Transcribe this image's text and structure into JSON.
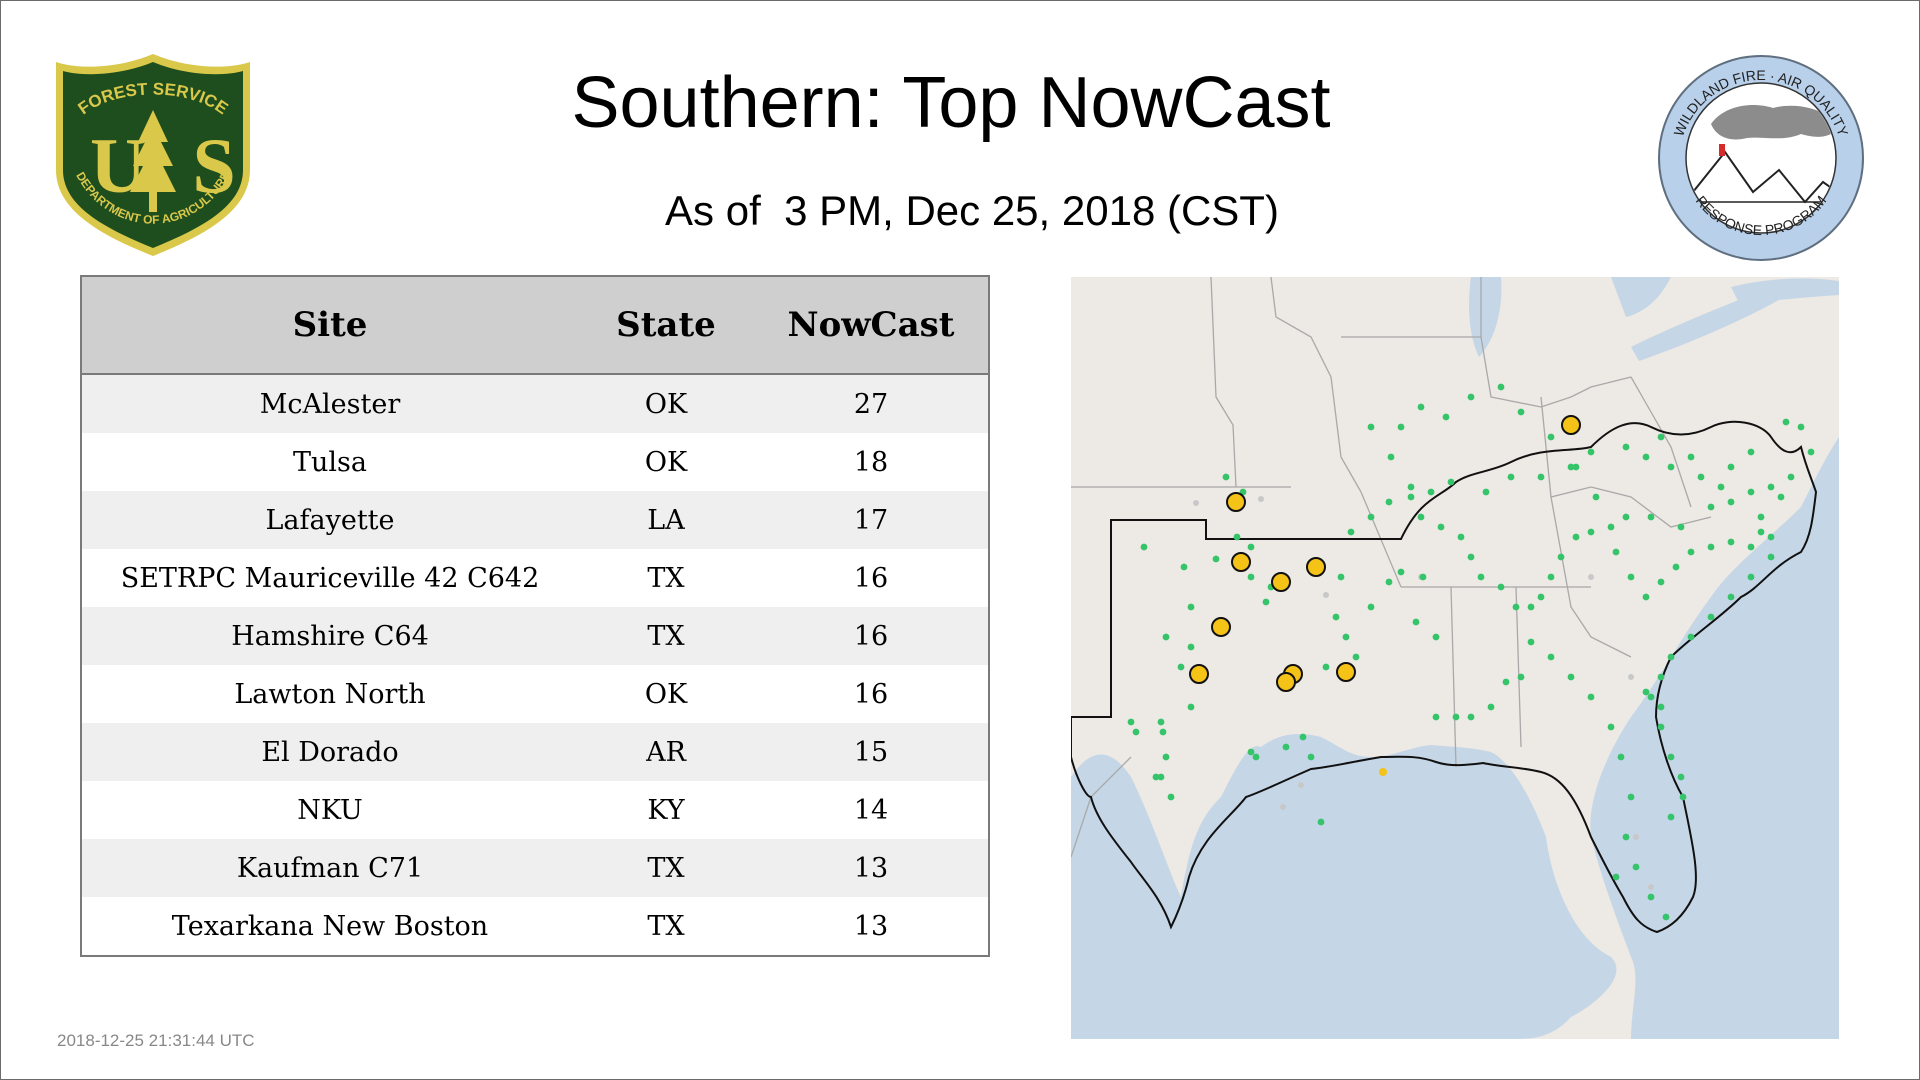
{
  "header": {
    "title": "Southern: Top NowCast",
    "subtitle": "As of  3 PM, Dec 25, 2018 (CST)"
  },
  "logos": {
    "forest_service": {
      "top_text": "FOREST SERVICE",
      "letters": "US",
      "bottom_text": "DEPARTMENT OF AGRICULTURE",
      "colors": {
        "shield": "#1e4d1e",
        "trim": "#d9c84a"
      }
    },
    "wildland_fire": {
      "top_text": "WILDLAND FIRE · AIR QUALITY",
      "bottom_text": "RESPONSE PROGRAM",
      "colors": {
        "ring": "#b8d0ea",
        "smoke": "#8c8c8c"
      }
    }
  },
  "table": {
    "headers": {
      "site": "Site",
      "state": "State",
      "nowcast": "NowCast"
    },
    "rows": [
      {
        "site": "McAlester",
        "state": "OK",
        "nowcast": "27"
      },
      {
        "site": "Tulsa",
        "state": "OK",
        "nowcast": "18"
      },
      {
        "site": "Lafayette",
        "state": "LA",
        "nowcast": "17"
      },
      {
        "site": "SETRPC Mauriceville 42 C642",
        "state": "TX",
        "nowcast": "16"
      },
      {
        "site": "Hamshire C64",
        "state": "TX",
        "nowcast": "16"
      },
      {
        "site": "Lawton North",
        "state": "OK",
        "nowcast": "16"
      },
      {
        "site": "El Dorado",
        "state": "AR",
        "nowcast": "15"
      },
      {
        "site": "NKU",
        "state": "KY",
        "nowcast": "14"
      },
      {
        "site": "Kaufman C71",
        "state": "TX",
        "nowcast": "13"
      },
      {
        "site": "Texarkana New Boston",
        "state": "TX",
        "nowcast": "13"
      }
    ]
  },
  "map": {
    "colors": {
      "land": "#ede9e4",
      "water": "#c5d6e7",
      "state_lines": "#a9a9a9",
      "region_outline": "#111111",
      "good_marker": "#35c46a",
      "moderate_marker": "#f5c218",
      "missing_marker": "#c8c8c8"
    },
    "highlighted_site_count": 10
  },
  "footer": {
    "timestamp": "2018-12-25 21:31:44 UTC"
  }
}
